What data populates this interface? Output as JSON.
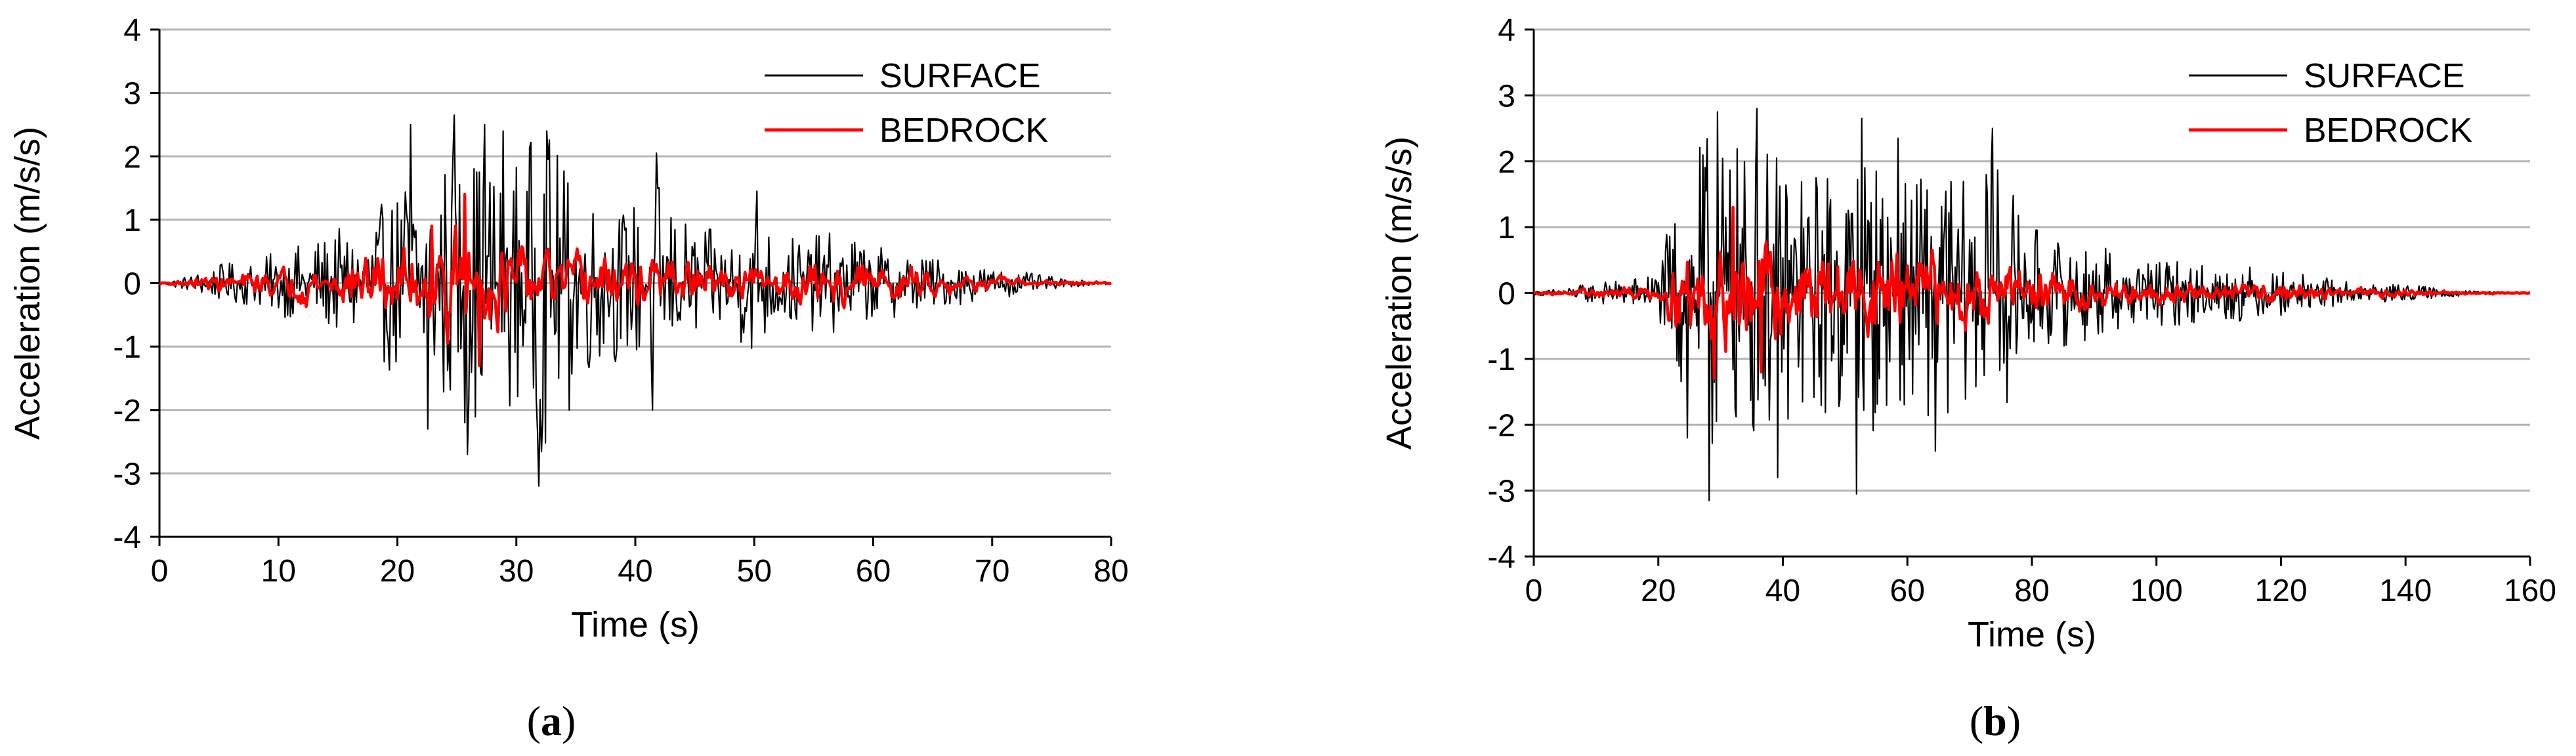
{
  "chart_data": [
    {
      "type": "line",
      "panel": "a",
      "caption_prefix": "(",
      "caption_letter": "a",
      "caption_suffix": ")",
      "xlabel": "Time (s)",
      "ylabel": "Acceleration (m/s/s)",
      "xlim": [
        0,
        80
      ],
      "ylim": [
        -4,
        4
      ],
      "xticks": [
        0,
        10,
        20,
        30,
        40,
        50,
        60,
        70,
        80
      ],
      "yticks": [
        -4,
        -3,
        -2,
        -1,
        0,
        1,
        2,
        3,
        4
      ],
      "grid": "horizontal",
      "legend": "top-right",
      "series": [
        {
          "name": "SURFACE",
          "color": "#000000",
          "envelope": [
            [
              0,
              0.03
            ],
            [
              2,
              0.12
            ],
            [
              5,
              0.35
            ],
            [
              8,
              0.45
            ],
            [
              10,
              0.6
            ],
            [
              12,
              0.75
            ],
            [
              15,
              1.0
            ],
            [
              18,
              1.3
            ],
            [
              20,
              1.8
            ],
            [
              21,
              2.5
            ],
            [
              23,
              2.3
            ],
            [
              25,
              2.7
            ],
            [
              27,
              2.5
            ],
            [
              29,
              2.2
            ],
            [
              31,
              2.6
            ],
            [
              32,
              3.2
            ],
            [
              34,
              2.2
            ],
            [
              36,
              1.7
            ],
            [
              38,
              1.5
            ],
            [
              40,
              1.5
            ],
            [
              42,
              2.0
            ],
            [
              44,
              1.2
            ],
            [
              46,
              1.0
            ],
            [
              48,
              1.0
            ],
            [
              50,
              1.4
            ],
            [
              52,
              0.9
            ],
            [
              55,
              0.9
            ],
            [
              58,
              1.0
            ],
            [
              60,
              0.7
            ],
            [
              63,
              0.6
            ],
            [
              66,
              0.45
            ],
            [
              70,
              0.3
            ],
            [
              73,
              0.2
            ],
            [
              76,
              0.08
            ],
            [
              80,
              0.02
            ]
          ],
          "peaks": [
            {
              "t": 21.1,
              "a": 2.5
            },
            {
              "t": 24.8,
              "a": 2.65
            },
            {
              "t": 25.9,
              "a": -2.7
            },
            {
              "t": 27.3,
              "a": 2.5
            },
            {
              "t": 31.9,
              "a": -3.2
            },
            {
              "t": 32.6,
              "a": 2.4
            },
            {
              "t": 34.4,
              "a": -2.0
            },
            {
              "t": 41.8,
              "a": 2.05
            },
            {
              "t": 41.5,
              "a": -2.0
            },
            {
              "t": 50.2,
              "a": 1.45
            },
            {
              "t": 22.6,
              "a": -2.3
            },
            {
              "t": 28.9,
              "a": 2.4
            }
          ]
        },
        {
          "name": "BEDROCK",
          "color": "#ff0000",
          "envelope": [
            [
              0,
              0.02
            ],
            [
              2,
              0.08
            ],
            [
              5,
              0.22
            ],
            [
              8,
              0.28
            ],
            [
              10,
              0.35
            ],
            [
              12,
              0.45
            ],
            [
              15,
              0.6
            ],
            [
              18,
              0.7
            ],
            [
              20,
              0.85
            ],
            [
              22,
              0.95
            ],
            [
              25,
              1.3
            ],
            [
              27,
              1.1
            ],
            [
              30,
              0.85
            ],
            [
              34,
              0.65
            ],
            [
              38,
              0.6
            ],
            [
              41,
              0.7
            ],
            [
              44,
              0.5
            ],
            [
              48,
              0.4
            ],
            [
              52,
              0.4
            ],
            [
              56,
              0.55
            ],
            [
              58,
              0.55
            ],
            [
              60,
              0.45
            ],
            [
              63,
              0.35
            ],
            [
              66,
              0.25
            ],
            [
              70,
              0.15
            ],
            [
              74,
              0.07
            ],
            [
              80,
              0.02
            ]
          ],
          "peaks": [
            {
              "t": 25.7,
              "a": 1.4
            },
            {
              "t": 26.9,
              "a": -1.3
            },
            {
              "t": 22.9,
              "a": 0.9
            }
          ]
        }
      ]
    },
    {
      "type": "line",
      "panel": "b",
      "caption_prefix": "(",
      "caption_letter": "b",
      "caption_suffix": ")",
      "xlabel": "Time (s)",
      "ylabel": "Acceleration (m/s/s)",
      "xlim": [
        0,
        160
      ],
      "ylim": [
        -4,
        4
      ],
      "xticks": [
        0,
        20,
        40,
        60,
        80,
        100,
        120,
        140,
        160
      ],
      "yticks": [
        -4,
        -3,
        -2,
        -1,
        0,
        1,
        2,
        3,
        4
      ],
      "grid": "horizontal",
      "legend": "top-right",
      "series": [
        {
          "name": "SURFACE",
          "color": "#000000",
          "envelope": [
            [
              0,
              0.03
            ],
            [
              5,
              0.1
            ],
            [
              10,
              0.2
            ],
            [
              15,
              0.25
            ],
            [
              20,
              0.45
            ],
            [
              23,
              1.8
            ],
            [
              26,
              2.4
            ],
            [
              28,
              3.1
            ],
            [
              32,
              2.6
            ],
            [
              36,
              2.8
            ],
            [
              40,
              2.4
            ],
            [
              44,
              2.2
            ],
            [
              48,
              2.3
            ],
            [
              52,
              3.0
            ],
            [
              56,
              2.2
            ],
            [
              60,
              2.0
            ],
            [
              64,
              2.4
            ],
            [
              68,
              2.0
            ],
            [
              72,
              2.1
            ],
            [
              74,
              2.5
            ],
            [
              78,
              1.6
            ],
            [
              82,
              1.0
            ],
            [
              88,
              0.9
            ],
            [
              95,
              0.75
            ],
            [
              100,
              0.6
            ],
            [
              108,
              0.55
            ],
            [
              115,
              0.5
            ],
            [
              120,
              0.4
            ],
            [
              126,
              0.3
            ],
            [
              132,
              0.2
            ],
            [
              140,
              0.15
            ],
            [
              146,
              0.1
            ],
            [
              150,
              0.04
            ],
            [
              160,
              0.02
            ]
          ],
          "peaks": [
            {
              "t": 28.2,
              "a": -3.15
            },
            {
              "t": 35.8,
              "a": 2.8
            },
            {
              "t": 29.5,
              "a": 2.75
            },
            {
              "t": 51.8,
              "a": -3.05
            },
            {
              "t": 52.6,
              "a": 2.65
            },
            {
              "t": 64.5,
              "a": -2.4
            },
            {
              "t": 73.6,
              "a": 2.5
            },
            {
              "t": 39.1,
              "a": -2.8
            },
            {
              "t": 24.6,
              "a": -2.2
            },
            {
              "t": 58.5,
              "a": 2.35
            }
          ]
        },
        {
          "name": "BEDROCK",
          "color": "#ff0000",
          "envelope": [
            [
              0,
              0.02
            ],
            [
              5,
              0.05
            ],
            [
              10,
              0.1
            ],
            [
              15,
              0.12
            ],
            [
              20,
              0.2
            ],
            [
              22,
              0.6
            ],
            [
              24,
              1.05
            ],
            [
              28,
              1.15
            ],
            [
              32,
              1.1
            ],
            [
              36,
              1.2
            ],
            [
              40,
              1.05
            ],
            [
              45,
              0.95
            ],
            [
              50,
              0.9
            ],
            [
              55,
              0.9
            ],
            [
              60,
              0.85
            ],
            [
              65,
              0.8
            ],
            [
              70,
              0.7
            ],
            [
              75,
              0.6
            ],
            [
              80,
              0.55
            ],
            [
              85,
              0.45
            ],
            [
              90,
              0.35
            ],
            [
              95,
              0.3
            ],
            [
              100,
              0.25
            ],
            [
              110,
              0.22
            ],
            [
              120,
              0.2
            ],
            [
              130,
              0.12
            ],
            [
              140,
              0.08
            ],
            [
              148,
              0.04
            ],
            [
              160,
              0.01
            ]
          ],
          "peaks": [
            {
              "t": 29.0,
              "a": -1.3
            },
            {
              "t": 32.0,
              "a": 1.3
            },
            {
              "t": 36.5,
              "a": -1.2
            }
          ]
        }
      ]
    }
  ]
}
